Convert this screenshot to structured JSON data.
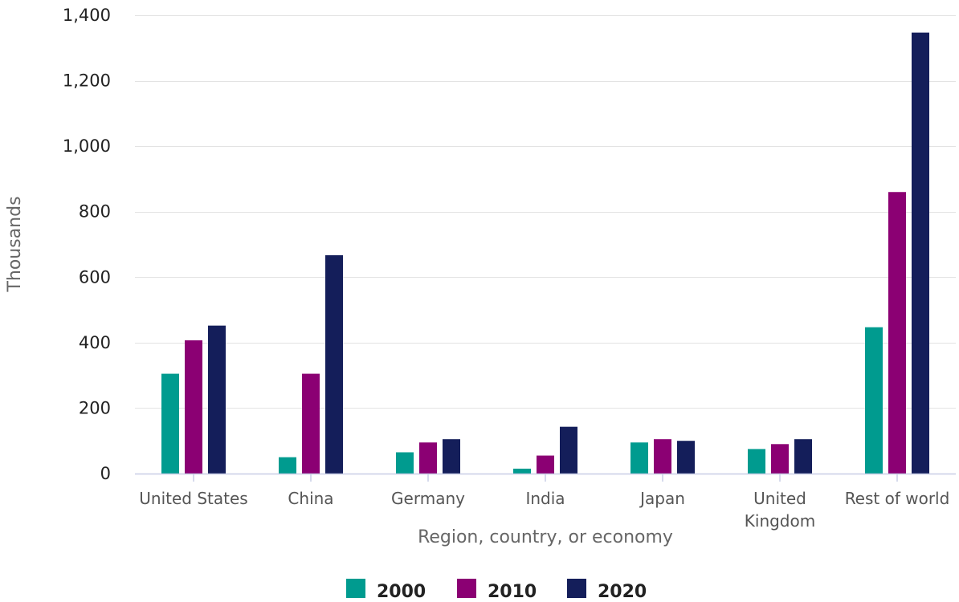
{
  "chart_data": {
    "type": "bar",
    "title": "",
    "xlabel": "Region, country, or economy",
    "ylabel": "Thousands",
    "ylim": [
      0,
      1400
    ],
    "yticks": [
      0,
      200,
      400,
      600,
      800,
      1000,
      1200,
      1400
    ],
    "ytick_labels": [
      "0",
      "200",
      "400",
      "600",
      "800",
      "1,000",
      "1,200",
      "1,400"
    ],
    "grid": true,
    "legend_position": "bottom-center",
    "categories": [
      [
        "United States"
      ],
      [
        "China"
      ],
      [
        "Germany"
      ],
      [
        "India"
      ],
      [
        "Japan"
      ],
      [
        "United",
        "Kingdom"
      ],
      [
        "Rest of world"
      ]
    ],
    "series": [
      {
        "name": "2000",
        "color": "#009B8F",
        "values": [
          305,
          50,
          65,
          15,
          95,
          75,
          447
        ]
      },
      {
        "name": "2010",
        "color": "#8B0073",
        "values": [
          407,
          305,
          95,
          55,
          105,
          90,
          860
        ]
      },
      {
        "name": "2020",
        "color": "#141E5A",
        "values": [
          452,
          667,
          105,
          143,
          100,
          105,
          1347
        ]
      }
    ]
  }
}
